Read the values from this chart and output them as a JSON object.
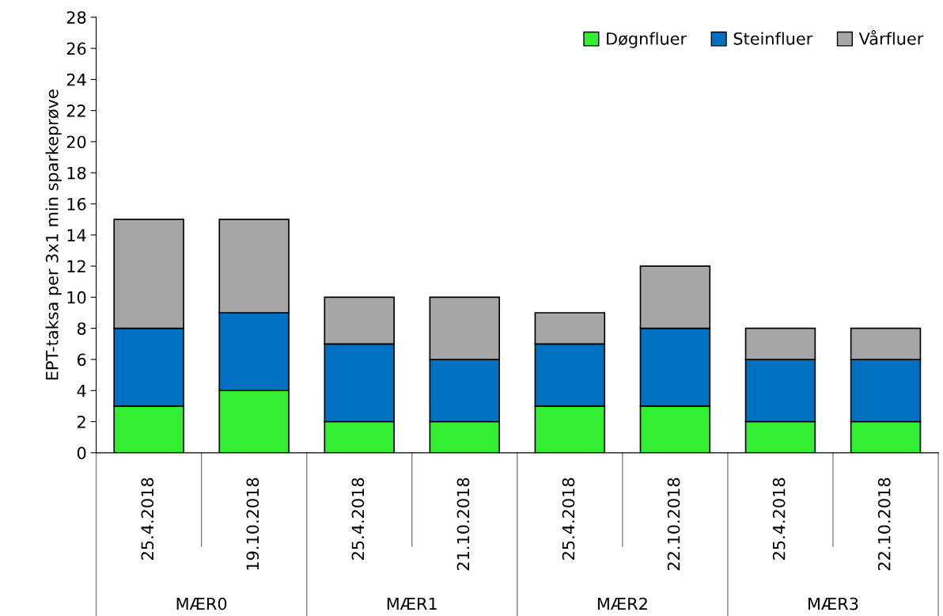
{
  "chart_data": {
    "type": "bar",
    "stacked": true,
    "ylabel": "EPT-taksa per 3x1 min sparkeprøve",
    "categories": [
      "25.4.2018",
      "19.10.2018",
      "25.4.2018",
      "21.10.2018",
      "25.4.2018",
      "22.10.2018",
      "25.4.2018",
      "22.10.2018"
    ],
    "series": [
      {
        "name": "Døgnfluer",
        "color": "#33ee33",
        "values": [
          3,
          4,
          2,
          2,
          3,
          3,
          2,
          2
        ]
      },
      {
        "name": "Steinfluer",
        "color": "#0070c0",
        "values": [
          5,
          5,
          5,
          4,
          4,
          5,
          4,
          4
        ]
      },
      {
        "name": "Vårfluer",
        "color": "#a6a6a6",
        "values": [
          7,
          6,
          3,
          4,
          2,
          4,
          2,
          2
        ]
      }
    ],
    "annotations": [
      "MÆR0",
      "MÆR1",
      "MÆR2",
      "MÆR3"
    ],
    "ylim": [
      0,
      28
    ],
    "yticks": [
      0,
      2,
      4,
      6,
      8,
      10,
      12,
      14,
      16,
      18,
      20,
      22,
      24,
      26,
      28
    ],
    "legend": "top right"
  }
}
